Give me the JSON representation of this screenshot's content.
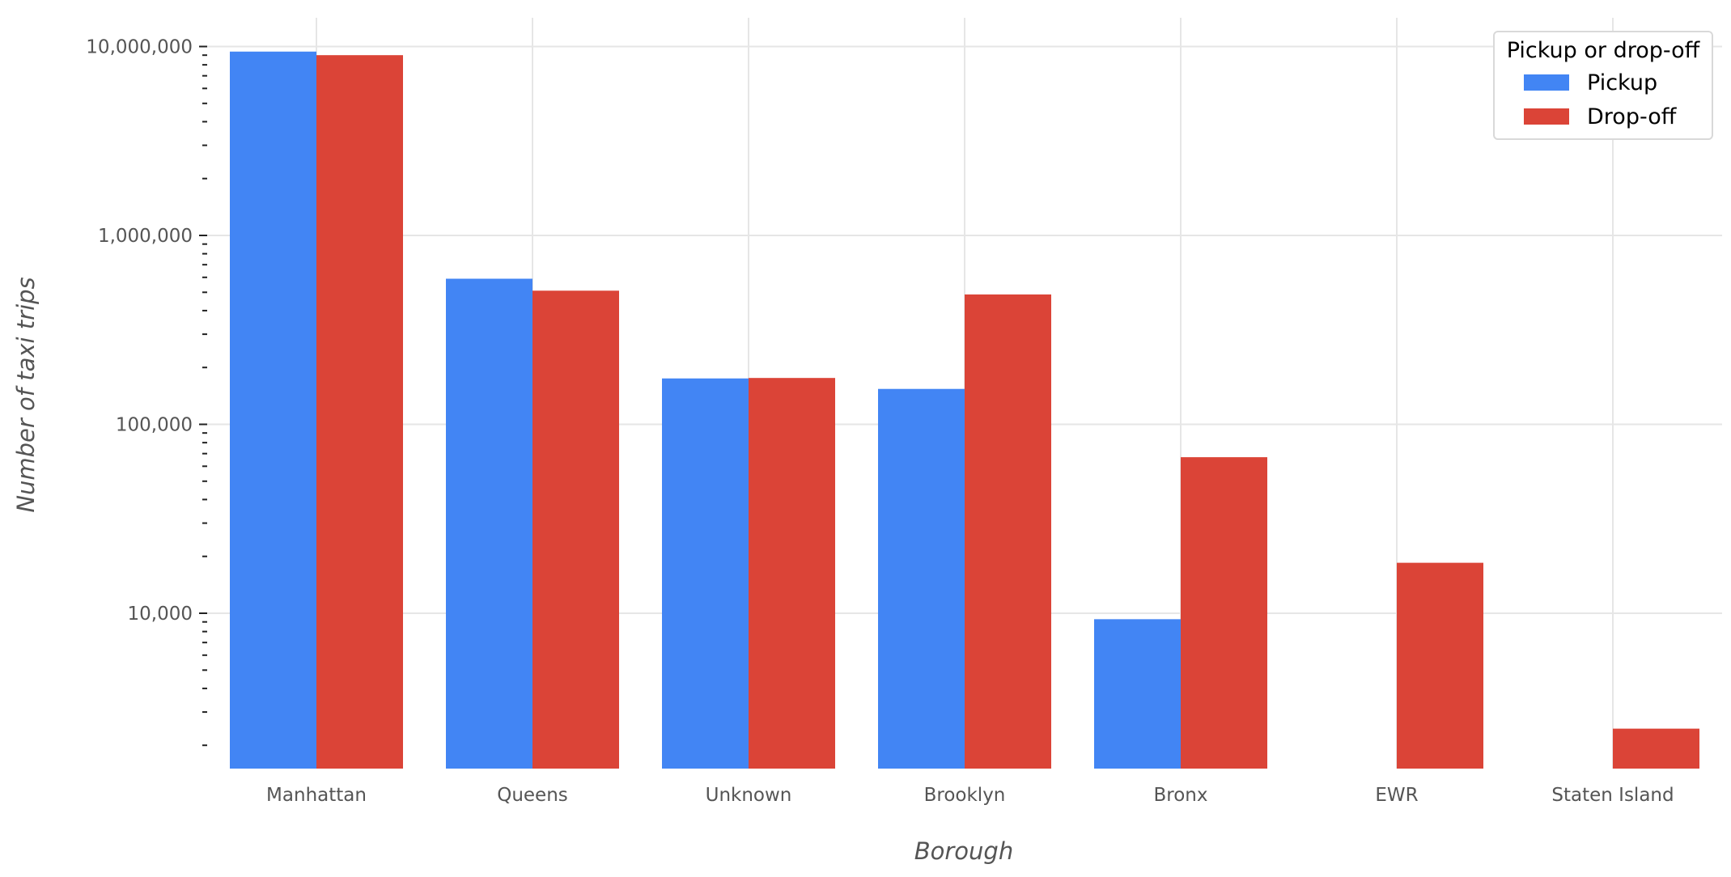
{
  "chart_data": {
    "type": "bar",
    "title": "",
    "xlabel": "Borough",
    "ylabel": "Number of taxi trips",
    "yscale": "log",
    "ylim": [
      1500,
      13000000
    ],
    "grid": true,
    "categories": [
      "Manhattan",
      "Queens",
      "Unknown",
      "Brooklyn",
      "Bronx",
      "EWR",
      "Staten Island"
    ],
    "y_ticks": [
      {
        "value": 10000,
        "label": "10,000"
      },
      {
        "value": 100000,
        "label": "100,000"
      },
      {
        "value": 1000000,
        "label": "1,000,000"
      },
      {
        "value": 10000000,
        "label": "10,000,000"
      }
    ],
    "series": [
      {
        "name": "Pickup",
        "color": "#4285F4",
        "values": [
          9400000,
          590000,
          175000,
          154000,
          9300,
          null,
          null
        ]
      },
      {
        "name": "Drop-off",
        "color": "#DB4437",
        "values": [
          9000000,
          510000,
          176000,
          487000,
          67000,
          18500,
          2450
        ]
      }
    ],
    "legend": {
      "title": "Pickup or drop-off",
      "position": "top-right"
    }
  }
}
